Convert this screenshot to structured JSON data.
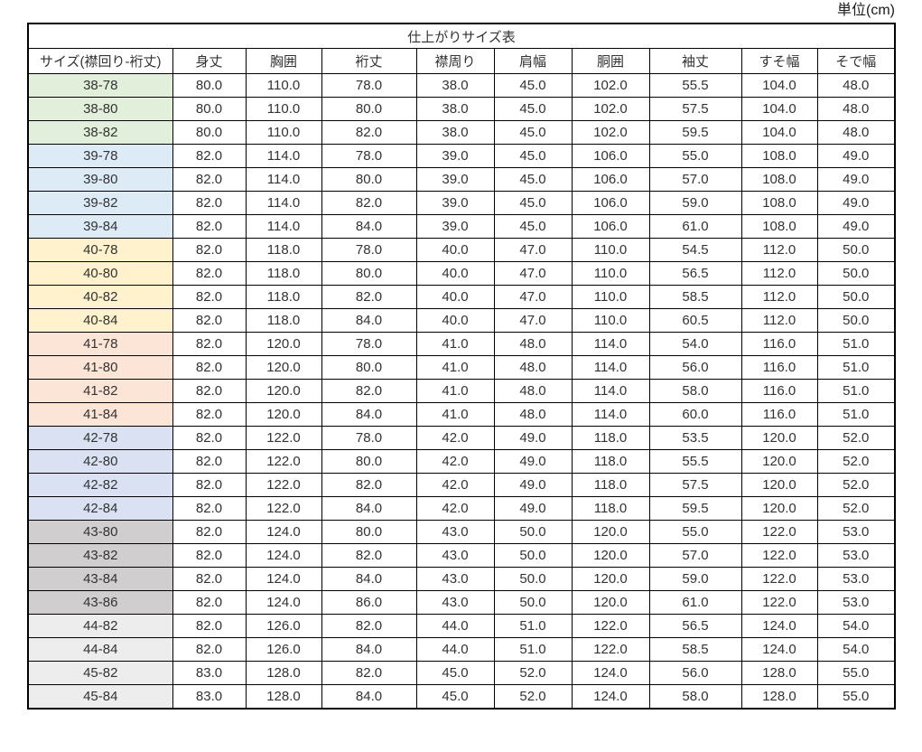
{
  "unit_label": "単位(cm)",
  "table": {
    "title": "仕上がりサイズ表",
    "columns": [
      "サイズ(襟回り-裄丈)",
      "身丈",
      "胸囲",
      "裄丈",
      "襟周り",
      "肩幅",
      "胴囲",
      "袖丈",
      "すそ幅",
      "そで幅"
    ],
    "group_colors": {
      "38": "#E2EFDA",
      "39": "#DDEBF7",
      "40": "#FFF2CC",
      "41": "#FCE4D6",
      "42": "#D9E1F2",
      "43": "#D0CECE",
      "44": "#EDEDED",
      "45": "#EDEDED"
    },
    "rows": [
      {
        "group": "38",
        "size": "38-78",
        "values": [
          "80.0",
          "110.0",
          "78.0",
          "38.0",
          "45.0",
          "102.0",
          "55.5",
          "104.0",
          "48.0"
        ]
      },
      {
        "group": "38",
        "size": "38-80",
        "values": [
          "80.0",
          "110.0",
          "80.0",
          "38.0",
          "45.0",
          "102.0",
          "57.5",
          "104.0",
          "48.0"
        ]
      },
      {
        "group": "38",
        "size": "38-82",
        "values": [
          "80.0",
          "110.0",
          "82.0",
          "38.0",
          "45.0",
          "102.0",
          "59.5",
          "104.0",
          "48.0"
        ]
      },
      {
        "group": "39",
        "size": "39-78",
        "values": [
          "82.0",
          "114.0",
          "78.0",
          "39.0",
          "45.0",
          "106.0",
          "55.0",
          "108.0",
          "49.0"
        ]
      },
      {
        "group": "39",
        "size": "39-80",
        "values": [
          "82.0",
          "114.0",
          "80.0",
          "39.0",
          "45.0",
          "106.0",
          "57.0",
          "108.0",
          "49.0"
        ]
      },
      {
        "group": "39",
        "size": "39-82",
        "values": [
          "82.0",
          "114.0",
          "82.0",
          "39.0",
          "45.0",
          "106.0",
          "59.0",
          "108.0",
          "49.0"
        ]
      },
      {
        "group": "39",
        "size": "39-84",
        "values": [
          "82.0",
          "114.0",
          "84.0",
          "39.0",
          "45.0",
          "106.0",
          "61.0",
          "108.0",
          "49.0"
        ]
      },
      {
        "group": "40",
        "size": "40-78",
        "values": [
          "82.0",
          "118.0",
          "78.0",
          "40.0",
          "47.0",
          "110.0",
          "54.5",
          "112.0",
          "50.0"
        ]
      },
      {
        "group": "40",
        "size": "40-80",
        "values": [
          "82.0",
          "118.0",
          "80.0",
          "40.0",
          "47.0",
          "110.0",
          "56.5",
          "112.0",
          "50.0"
        ]
      },
      {
        "group": "40",
        "size": "40-82",
        "values": [
          "82.0",
          "118.0",
          "82.0",
          "40.0",
          "47.0",
          "110.0",
          "58.5",
          "112.0",
          "50.0"
        ]
      },
      {
        "group": "40",
        "size": "40-84",
        "values": [
          "82.0",
          "118.0",
          "84.0",
          "40.0",
          "47.0",
          "110.0",
          "60.5",
          "112.0",
          "50.0"
        ]
      },
      {
        "group": "41",
        "size": "41-78",
        "values": [
          "82.0",
          "120.0",
          "78.0",
          "41.0",
          "48.0",
          "114.0",
          "54.0",
          "116.0",
          "51.0"
        ]
      },
      {
        "group": "41",
        "size": "41-80",
        "values": [
          "82.0",
          "120.0",
          "80.0",
          "41.0",
          "48.0",
          "114.0",
          "56.0",
          "116.0",
          "51.0"
        ]
      },
      {
        "group": "41",
        "size": "41-82",
        "values": [
          "82.0",
          "120.0",
          "82.0",
          "41.0",
          "48.0",
          "114.0",
          "58.0",
          "116.0",
          "51.0"
        ]
      },
      {
        "group": "41",
        "size": "41-84",
        "values": [
          "82.0",
          "120.0",
          "84.0",
          "41.0",
          "48.0",
          "114.0",
          "60.0",
          "116.0",
          "51.0"
        ]
      },
      {
        "group": "42",
        "size": "42-78",
        "values": [
          "82.0",
          "122.0",
          "78.0",
          "42.0",
          "49.0",
          "118.0",
          "53.5",
          "120.0",
          "52.0"
        ]
      },
      {
        "group": "42",
        "size": "42-80",
        "values": [
          "82.0",
          "122.0",
          "80.0",
          "42.0",
          "49.0",
          "118.0",
          "55.5",
          "120.0",
          "52.0"
        ]
      },
      {
        "group": "42",
        "size": "42-82",
        "values": [
          "82.0",
          "122.0",
          "82.0",
          "42.0",
          "49.0",
          "118.0",
          "57.5",
          "120.0",
          "52.0"
        ]
      },
      {
        "group": "42",
        "size": "42-84",
        "values": [
          "82.0",
          "122.0",
          "84.0",
          "42.0",
          "49.0",
          "118.0",
          "59.5",
          "120.0",
          "52.0"
        ]
      },
      {
        "group": "43",
        "size": "43-80",
        "values": [
          "82.0",
          "124.0",
          "80.0",
          "43.0",
          "50.0",
          "120.0",
          "55.0",
          "122.0",
          "53.0"
        ]
      },
      {
        "group": "43",
        "size": "43-82",
        "values": [
          "82.0",
          "124.0",
          "82.0",
          "43.0",
          "50.0",
          "120.0",
          "57.0",
          "122.0",
          "53.0"
        ]
      },
      {
        "group": "43",
        "size": "43-84",
        "values": [
          "82.0",
          "124.0",
          "84.0",
          "43.0",
          "50.0",
          "120.0",
          "59.0",
          "122.0",
          "53.0"
        ]
      },
      {
        "group": "43",
        "size": "43-86",
        "values": [
          "82.0",
          "124.0",
          "86.0",
          "43.0",
          "50.0",
          "120.0",
          "61.0",
          "122.0",
          "53.0"
        ]
      },
      {
        "group": "44",
        "size": "44-82",
        "values": [
          "82.0",
          "126.0",
          "82.0",
          "44.0",
          "51.0",
          "122.0",
          "56.5",
          "124.0",
          "54.0"
        ]
      },
      {
        "group": "44",
        "size": "44-84",
        "values": [
          "82.0",
          "126.0",
          "84.0",
          "44.0",
          "51.0",
          "122.0",
          "58.5",
          "124.0",
          "54.0"
        ]
      },
      {
        "group": "45",
        "size": "45-82",
        "values": [
          "83.0",
          "128.0",
          "82.0",
          "45.0",
          "52.0",
          "124.0",
          "56.0",
          "128.0",
          "55.0"
        ]
      },
      {
        "group": "45",
        "size": "45-84",
        "values": [
          "83.0",
          "128.0",
          "84.0",
          "45.0",
          "52.0",
          "124.0",
          "58.0",
          "128.0",
          "55.0"
        ]
      }
    ]
  }
}
